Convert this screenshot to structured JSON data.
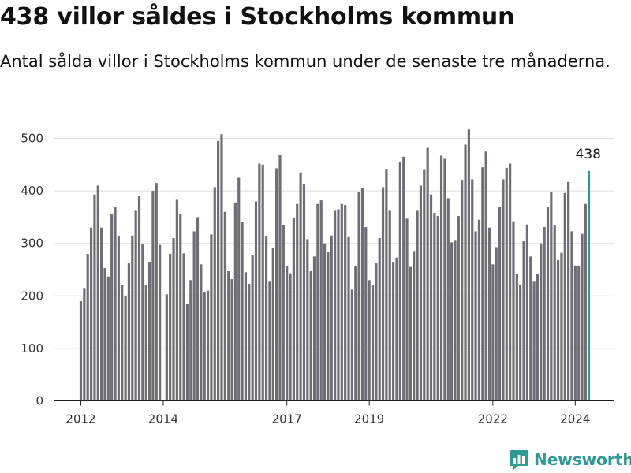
{
  "title": "438 villor såldes i Stockholms kommun",
  "subtitle": "Antal sålda villor i Stockholms kommun under de senaste tre månaderna.",
  "brand": {
    "name": "Newsworthy",
    "icon": "newsworthy-logo-icon",
    "color": "#2e9a93"
  },
  "chart_data": {
    "type": "bar",
    "title": "438 villor såldes i Stockholms kommun",
    "xlabel": "",
    "ylabel": "",
    "ylim": [
      0,
      540
    ],
    "yticks": [
      0,
      100,
      200,
      300,
      400,
      500
    ],
    "xticks": [
      {
        "label": "2012",
        "index": 0
      },
      {
        "label": "2014",
        "index": 24
      },
      {
        "label": "2017",
        "index": 60
      },
      {
        "label": "2019",
        "index": 84
      },
      {
        "label": "2022",
        "index": 120
      },
      {
        "label": "2024",
        "index": 144
      }
    ],
    "grid": true,
    "bar_color": "#6f6e74",
    "highlight_color": "#27998f",
    "highlight_label": "438",
    "values": [
      190,
      215,
      280,
      330,
      393,
      410,
      330,
      253,
      237,
      355,
      370,
      313,
      220,
      200,
      262,
      315,
      362,
      390,
      298,
      220,
      265,
      400,
      415,
      297,
      null,
      203,
      280,
      310,
      383,
      356,
      281,
      185,
      230,
      323,
      350,
      260,
      207,
      210,
      317,
      407,
      495,
      508,
      360,
      247,
      232,
      378,
      425,
      340,
      245,
      223,
      278,
      380,
      452,
      450,
      313,
      227,
      292,
      443,
      468,
      335,
      257,
      243,
      348,
      375,
      435,
      413,
      308,
      247,
      275,
      375,
      382,
      300,
      283,
      315,
      362,
      365,
      375,
      373,
      312,
      212,
      257,
      398,
      405,
      331,
      230,
      220,
      262,
      310,
      407,
      442,
      362,
      265,
      273,
      455,
      465,
      347,
      255,
      284,
      362,
      410,
      440,
      482,
      393,
      358,
      352,
      467,
      461,
      386,
      302,
      305,
      352,
      421,
      488,
      517,
      422,
      323,
      345,
      445,
      475,
      330,
      260,
      293,
      370,
      422,
      444,
      452,
      342,
      242,
      220,
      304,
      336,
      275,
      227,
      242,
      300,
      331,
      370,
      398,
      334,
      268,
      282,
      396,
      417,
      323,
      258,
      257,
      318,
      375,
      438
    ]
  }
}
